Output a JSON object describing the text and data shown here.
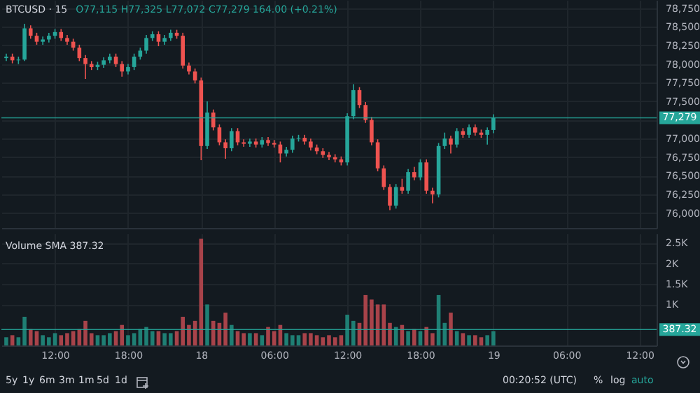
{
  "chart_data": [
    {
      "type": "candlestick",
      "title": "BTCUSD · 15",
      "subtitle": "O77,115 H77,325 L77,072 C77,279 164.00 (+0.21%)",
      "x": [
        "--01-17T08:00",
        "--01-17T08:30",
        "--01-17T09:00",
        "--01-17T09:30",
        "--01-17T10:00",
        "--01-17T10:30",
        "--01-17T11:00",
        "--01-17T11:30",
        "--01-17T12:00",
        "--01-17T12:30",
        "--01-17T13:00",
        "--01-17T13:30",
        "--01-17T14:00",
        "--01-17T14:30",
        "--01-17T15:00",
        "--01-17T15:30",
        "--01-17T16:00",
        "--01-17T16:30",
        "--01-17T17:00",
        "--01-17T17:30",
        "--01-17T18:00",
        "--01-17T18:30",
        "--01-17T19:00",
        "--01-17T19:30",
        "--01-17T20:00",
        "--01-17T20:30",
        "--01-17T21:00",
        "--01-17T21:30",
        "--01-17T22:00",
        "--01-17T22:30",
        "--01-17T23:00",
        "--01-17T23:30",
        "--01-18T00:00",
        "--01-18T00:30",
        "--01-18T01:00",
        "--01-18T01:30",
        "--01-18T02:00",
        "--01-18T02:30",
        "--01-18T03:00",
        "--01-18T03:30",
        "--01-18T04:00",
        "--01-18T04:30",
        "--01-18T05:00",
        "--01-18T05:30",
        "--01-18T06:00",
        "--01-18T06:30",
        "--01-18T07:00",
        "--01-18T07:30",
        "--01-18T08:00",
        "--01-18T08:30",
        "--01-18T09:00",
        "--01-18T09:30",
        "--01-18T10:00",
        "--01-18T10:30",
        "--01-18T11:00",
        "--01-18T11:30",
        "--01-18T12:00",
        "--01-18T12:30",
        "--01-18T13:00",
        "--01-18T13:30",
        "--01-18T14:00",
        "--01-18T14:30",
        "--01-18T15:00",
        "--01-18T15:30",
        "--01-18T16:00",
        "--01-18T16:30",
        "--01-18T17:00",
        "--01-18T17:30",
        "--01-18T18:00",
        "--01-18T18:30",
        "--01-18T19:00",
        "--01-18T19:30",
        "--01-18T20:00",
        "--01-18T20:30",
        "--01-18T21:00",
        "--01-18T21:30",
        "--01-18T22:00",
        "--01-18T22:30",
        "--01-18T23:00",
        "--01-18T23:30",
        "--01-19T00:00"
      ],
      "ohlc": [
        [
          78080,
          78140,
          78040,
          78100
        ],
        [
          78100,
          78140,
          78010,
          78050
        ],
        [
          78050,
          78100,
          78000,
          78060
        ],
        [
          78060,
          78540,
          78040,
          78480
        ],
        [
          78480,
          78520,
          78340,
          78380
        ],
        [
          78380,
          78420,
          78260,
          78300
        ],
        [
          78300,
          78370,
          78260,
          78330
        ],
        [
          78330,
          78420,
          78290,
          78380
        ],
        [
          78380,
          78470,
          78340,
          78430
        ],
        [
          78430,
          78470,
          78310,
          78350
        ],
        [
          78350,
          78390,
          78260,
          78300
        ],
        [
          78300,
          78340,
          78180,
          78220
        ],
        [
          78220,
          78260,
          78040,
          78080
        ],
        [
          78080,
          78120,
          77800,
          78000
        ],
        [
          78000,
          78040,
          77920,
          77960
        ],
        [
          77960,
          78030,
          77920,
          77990
        ],
        [
          77990,
          78090,
          77950,
          78050
        ],
        [
          78050,
          78140,
          78010,
          78100
        ],
        [
          78100,
          78140,
          77960,
          78000
        ],
        [
          78000,
          78040,
          77830,
          77900
        ],
        [
          77900,
          78000,
          77860,
          77960
        ],
        [
          77960,
          78140,
          77920,
          78100
        ],
        [
          78100,
          78220,
          78060,
          78180
        ],
        [
          78180,
          78390,
          78140,
          78350
        ],
        [
          78350,
          78440,
          78310,
          78400
        ],
        [
          78400,
          78440,
          78240,
          78300
        ],
        [
          78300,
          78390,
          78260,
          78350
        ],
        [
          78350,
          78460,
          78310,
          78420
        ],
        [
          78420,
          78460,
          78340,
          78380
        ],
        [
          78380,
          78420,
          77940,
          77980
        ],
        [
          77980,
          78020,
          77860,
          77900
        ],
        [
          77900,
          77940,
          77740,
          77780
        ],
        [
          77780,
          77820,
          76710,
          76900
        ],
        [
          76900,
          77500,
          76860,
          77350
        ],
        [
          77350,
          77390,
          77110,
          77150
        ],
        [
          77150,
          77190,
          76910,
          76950
        ],
        [
          76950,
          76990,
          76730,
          76870
        ],
        [
          76870,
          77140,
          76830,
          77100
        ],
        [
          77100,
          77140,
          76910,
          76950
        ],
        [
          76950,
          76990,
          76890,
          76930
        ],
        [
          76930,
          77000,
          76890,
          76960
        ],
        [
          76960,
          77000,
          76880,
          76920
        ],
        [
          76920,
          77020,
          76880,
          76980
        ],
        [
          76980,
          77020,
          76900,
          76940
        ],
        [
          76940,
          76980,
          76880,
          76920
        ],
        [
          76920,
          76960,
          76680,
          76800
        ],
        [
          76800,
          76890,
          76760,
          76850
        ],
        [
          76850,
          77040,
          76810,
          77000
        ],
        [
          77000,
          77050,
          76960,
          77010
        ],
        [
          77010,
          77050,
          76920,
          76960
        ],
        [
          76960,
          77000,
          76840,
          76880
        ],
        [
          76880,
          76920,
          76790,
          76830
        ],
        [
          76830,
          76870,
          76740,
          76780
        ],
        [
          76780,
          76820,
          76710,
          76750
        ],
        [
          76750,
          76790,
          76680,
          76720
        ],
        [
          76720,
          76760,
          76640,
          76680
        ],
        [
          76680,
          77340,
          76640,
          77300
        ],
        [
          77300,
          77730,
          77260,
          77650
        ],
        [
          77650,
          77690,
          77410,
          77450
        ],
        [
          77450,
          77490,
          77210,
          77250
        ],
        [
          77250,
          77290,
          76910,
          76950
        ],
        [
          76950,
          76990,
          76560,
          76600
        ],
        [
          76600,
          76640,
          76310,
          76350
        ],
        [
          76350,
          76390,
          76040,
          76100
        ],
        [
          76100,
          76390,
          76060,
          76350
        ],
        [
          76350,
          76460,
          76260,
          76300
        ],
        [
          76300,
          76590,
          76260,
          76550
        ],
        [
          76550,
          76620,
          76440,
          76480
        ],
        [
          76480,
          76720,
          76440,
          76680
        ],
        [
          76680,
          76720,
          76260,
          76300
        ],
        [
          76300,
          76340,
          76130,
          76250
        ],
        [
          76250,
          76940,
          76210,
          76900
        ],
        [
          76900,
          77080,
          76860,
          77000
        ],
        [
          77000,
          77040,
          76800,
          76920
        ],
        [
          76920,
          77140,
          76880,
          77100
        ],
        [
          77100,
          77140,
          77010,
          77050
        ],
        [
          77050,
          77190,
          77010,
          77150
        ],
        [
          77150,
          77190,
          77040,
          77080
        ],
        [
          77080,
          77120,
          77010,
          77050
        ],
        [
          77050,
          77150,
          76920,
          77115
        ],
        [
          77115,
          77325,
          77072,
          77279
        ]
      ],
      "colors": [
        "#26a69a",
        "#ef5350",
        "#26a69a",
        "#26a69a",
        "#ef5350",
        "#ef5350",
        "#26a69a",
        "#26a69a",
        "#26a69a",
        "#ef5350",
        "#ef5350",
        "#ef5350",
        "#ef5350",
        "#ef5350",
        "#ef5350",
        "#26a69a",
        "#26a69a",
        "#26a69a",
        "#ef5350",
        "#ef5350",
        "#26a69a",
        "#26a69a",
        "#26a69a",
        "#26a69a",
        "#26a69a",
        "#ef5350",
        "#26a69a",
        "#26a69a",
        "#ef5350",
        "#ef5350",
        "#ef5350",
        "#ef5350",
        "#ef5350",
        "#26a69a",
        "#ef5350",
        "#ef5350",
        "#ef5350",
        "#26a69a",
        "#ef5350",
        "#ef5350",
        "#26a69a",
        "#ef5350",
        "#26a69a",
        "#ef5350",
        "#ef5350",
        "#ef5350",
        "#26a69a",
        "#26a69a",
        "#26a69a",
        "#ef5350",
        "#ef5350",
        "#ef5350",
        "#ef5350",
        "#ef5350",
        "#ef5350",
        "#ef5350",
        "#26a69a",
        "#26a69a",
        "#ef5350",
        "#ef5350",
        "#ef5350",
        "#ef5350",
        "#ef5350",
        "#ef5350",
        "#26a69a",
        "#ef5350",
        "#26a69a",
        "#ef5350",
        "#26a69a",
        "#ef5350",
        "#ef5350",
        "#26a69a",
        "#26a69a",
        "#ef5350",
        "#26a69a",
        "#ef5350",
        "#26a69a",
        "#ef5350",
        "#ef5350",
        "#26a69a",
        "#26a69a"
      ],
      "xlim": [
        "--01-17T07:36",
        "--01-19T13:24"
      ],
      "xticks": [
        {
          "value": "--01-17T12:00",
          "label": "12:00"
        },
        {
          "value": "--01-17T18:00",
          "label": "18:00"
        },
        {
          "value": "--01-18T00:00",
          "label": "18"
        },
        {
          "value": "--01-18T06:00",
          "label": "06:00"
        },
        {
          "value": "--01-18T12:00",
          "label": "12:00"
        },
        {
          "value": "--01-18T18:00",
          "label": "18:00"
        },
        {
          "value": "--01-19T00:00",
          "label": "19"
        },
        {
          "value": "--01-19T06:00",
          "label": "06:00"
        },
        {
          "value": "--01-19T12:00",
          "label": "12:00"
        }
      ],
      "ylim": [
        75800,
        78860
      ],
      "yticks": [
        {
          "value": 76000,
          "label": "76,000"
        },
        {
          "value": 76250,
          "label": "76,250"
        },
        {
          "value": 76500,
          "label": "76,500"
        },
        {
          "value": 76750,
          "label": "76,750"
        },
        {
          "value": 77000,
          "label": "77,000"
        },
        {
          "value": 77250,
          "label": null
        },
        {
          "value": 77500,
          "label": "77,500"
        },
        {
          "value": 77750,
          "label": "77,750"
        },
        {
          "value": 78000,
          "label": "78,000"
        },
        {
          "value": 78250,
          "label": "78,250"
        },
        {
          "value": 78500,
          "label": "78,500"
        },
        {
          "value": 78750,
          "label": "78,750"
        }
      ],
      "ref_lines": [
        {
          "axis": "y",
          "value": 77279,
          "label": "77,279",
          "color": "#26a69a"
        }
      ],
      "tick_labels": "y",
      "grid": true
    },
    {
      "type": "bar",
      "title": "Volume SMA 387.32",
      "x": [
        "--01-17T08:00",
        "--01-17T08:30",
        "--01-17T09:00",
        "--01-17T09:30",
        "--01-17T10:00",
        "--01-17T10:30",
        "--01-17T11:00",
        "--01-17T11:30",
        "--01-17T12:00",
        "--01-17T12:30",
        "--01-17T13:00",
        "--01-17T13:30",
        "--01-17T14:00",
        "--01-17T14:30",
        "--01-17T15:00",
        "--01-17T15:30",
        "--01-17T16:00",
        "--01-17T16:30",
        "--01-17T17:00",
        "--01-17T17:30",
        "--01-17T18:00",
        "--01-17T18:30",
        "--01-17T19:00",
        "--01-17T19:30",
        "--01-17T20:00",
        "--01-17T20:30",
        "--01-17T21:00",
        "--01-17T21:30",
        "--01-17T22:00",
        "--01-17T22:30",
        "--01-17T23:00",
        "--01-17T23:30",
        "--01-18T00:00",
        "--01-18T00:30",
        "--01-18T01:00",
        "--01-18T01:30",
        "--01-18T02:00",
        "--01-18T02:30",
        "--01-18T03:00",
        "--01-18T03:30",
        "--01-18T04:00",
        "--01-18T04:30",
        "--01-18T05:00",
        "--01-18T05:30",
        "--01-18T06:00",
        "--01-18T06:30",
        "--01-18T07:00",
        "--01-18T07:30",
        "--01-18T08:00",
        "--01-18T08:30",
        "--01-18T09:00",
        "--01-18T09:30",
        "--01-18T10:00",
        "--01-18T10:30",
        "--01-18T11:00",
        "--01-18T11:30",
        "--01-18T12:00",
        "--01-18T12:30",
        "--01-18T13:00",
        "--01-18T13:30",
        "--01-18T14:00",
        "--01-18T14:30",
        "--01-18T15:00",
        "--01-18T15:30",
        "--01-18T16:00",
        "--01-18T16:30",
        "--01-18T17:00",
        "--01-18T17:30",
        "--01-18T18:00",
        "--01-18T18:30",
        "--01-18T19:00",
        "--01-18T19:30",
        "--01-18T20:00",
        "--01-18T20:30",
        "--01-18T21:00",
        "--01-18T21:30",
        "--01-18T22:00",
        "--01-18T22:30",
        "--01-18T23:00",
        "--01-18T23:30",
        "--01-19T00:00"
      ],
      "values": [
        200,
        250,
        200,
        700,
        400,
        350,
        250,
        200,
        300,
        250,
        300,
        350,
        400,
        600,
        300,
        250,
        250,
        300,
        350,
        500,
        250,
        300,
        400,
        450,
        350,
        350,
        300,
        300,
        350,
        700,
        500,
        600,
        2600,
        1000,
        600,
        550,
        800,
        500,
        350,
        300,
        300,
        300,
        250,
        450,
        350,
        500,
        300,
        250,
        250,
        300,
        300,
        250,
        200,
        250,
        200,
        250,
        750,
        600,
        550,
        1230,
        1120,
        1000,
        1000,
        550,
        450,
        500,
        350,
        400,
        350,
        450,
        300,
        1230,
        550,
        800,
        350,
        300,
        250,
        250,
        200,
        250,
        350
      ],
      "colors": [
        "#1f7f74",
        "#a8434a",
        "#1f7f74",
        "#1f7f74",
        "#a8434a",
        "#a8434a",
        "#1f7f74",
        "#1f7f74",
        "#1f7f74",
        "#a8434a",
        "#a8434a",
        "#a8434a",
        "#a8434a",
        "#a8434a",
        "#a8434a",
        "#1f7f74",
        "#1f7f74",
        "#1f7f74",
        "#a8434a",
        "#a8434a",
        "#1f7f74",
        "#1f7f74",
        "#1f7f74",
        "#1f7f74",
        "#1f7f74",
        "#a8434a",
        "#1f7f74",
        "#1f7f74",
        "#a8434a",
        "#a8434a",
        "#a8434a",
        "#a8434a",
        "#a8434a",
        "#1f7f74",
        "#a8434a",
        "#a8434a",
        "#a8434a",
        "#1f7f74",
        "#a8434a",
        "#a8434a",
        "#1f7f74",
        "#a8434a",
        "#1f7f74",
        "#a8434a",
        "#a8434a",
        "#a8434a",
        "#1f7f74",
        "#1f7f74",
        "#1f7f74",
        "#a8434a",
        "#a8434a",
        "#a8434a",
        "#a8434a",
        "#a8434a",
        "#a8434a",
        "#a8434a",
        "#1f7f74",
        "#1f7f74",
        "#a8434a",
        "#a8434a",
        "#a8434a",
        "#a8434a",
        "#a8434a",
        "#a8434a",
        "#1f7f74",
        "#a8434a",
        "#1f7f74",
        "#a8434a",
        "#1f7f74",
        "#a8434a",
        "#a8434a",
        "#1f7f74",
        "#1f7f74",
        "#a8434a",
        "#1f7f74",
        "#a8434a",
        "#1f7f74",
        "#a8434a",
        "#a8434a",
        "#1f7f74",
        "#1f7f74"
      ],
      "xlim": [
        "--01-17T07:36",
        "--01-19T13:24"
      ],
      "xticks": [
        {
          "value": "--01-17T12:00",
          "label": "12:00"
        },
        {
          "value": "--01-17T18:00",
          "label": "18:00"
        },
        {
          "value": "--01-18T00:00",
          "label": "18"
        },
        {
          "value": "--01-18T06:00",
          "label": "06:00"
        },
        {
          "value": "--01-18T12:00",
          "label": "12:00"
        },
        {
          "value": "--01-18T18:00",
          "label": "18:00"
        },
        {
          "value": "--01-19T00:00",
          "label": "19"
        },
        {
          "value": "--01-19T06:00",
          "label": "06:00"
        },
        {
          "value": "--01-19T12:00",
          "label": "12:00"
        }
      ],
      "ylim": [
        0,
        2730
      ],
      "yticks": [
        {
          "value": 1000,
          "label": "1K"
        },
        {
          "value": 1500,
          "label": "1.5K"
        },
        {
          "value": 2000,
          "label": "2K"
        },
        {
          "value": 2500,
          "label": "2.5K"
        }
      ],
      "ref_lines": [
        {
          "axis": "y",
          "value": 387.32,
          "label": "387.32",
          "color": "#26a69a"
        }
      ],
      "annotations": [
        "5y",
        "1y",
        "6m",
        "3m",
        "1m",
        "5d",
        "1d",
        "00:20:52 (UTC)",
        "%",
        "log",
        "auto"
      ],
      "grid": true
    }
  ]
}
